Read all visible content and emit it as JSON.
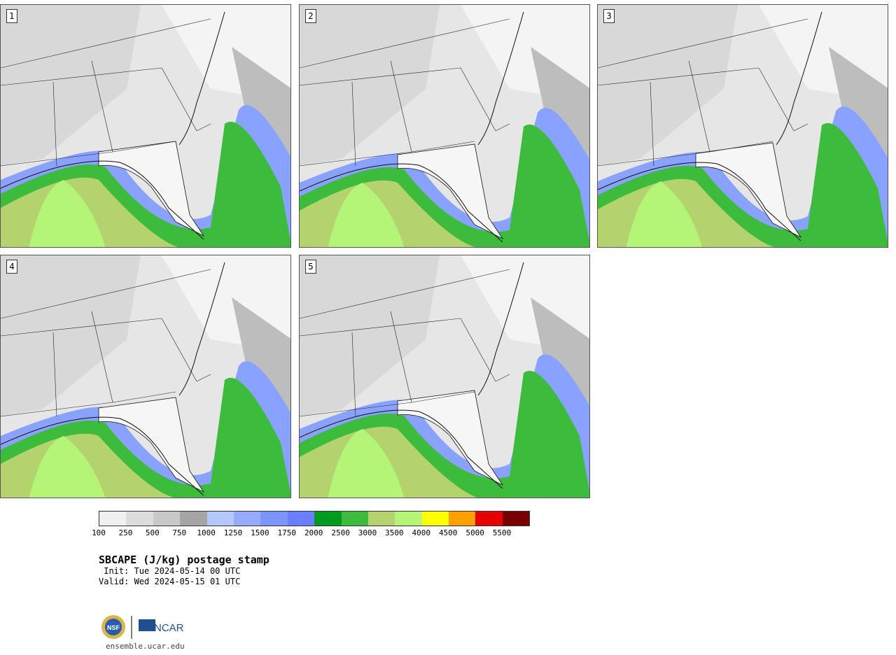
{
  "panels": [
    {
      "label": "1"
    },
    {
      "label": "2"
    },
    {
      "label": "3"
    },
    {
      "label": "4"
    },
    {
      "label": "5"
    }
  ],
  "colorbar": {
    "colors": [
      "#f0f0f0",
      "#dcdcdc",
      "#c8c8c8",
      "#a5a5a5",
      "#b4c8ff",
      "#96aaff",
      "#7d96ff",
      "#6a7fff",
      "#009a1e",
      "#3cbb3c",
      "#b4d26e",
      "#b4f578",
      "#ffff00",
      "#ffa000",
      "#e60000",
      "#780000"
    ],
    "tick_labels": [
      "100",
      "250",
      "500",
      "750",
      "1000",
      "1250",
      "1500",
      "1750",
      "2000",
      "2500",
      "3000",
      "3500",
      "4000",
      "4500",
      "5000",
      "5500"
    ]
  },
  "title": {
    "main": "SBCAPE (J/kg) postage stamp",
    "init": " Init: Tue 2024-05-14 00 UTC",
    "valid": "Valid: Wed 2024-05-15 01 UTC"
  },
  "logo": {
    "org_text": "NCAR",
    "seal_text": "NSF",
    "url": "ensemble.ucar.edu"
  }
}
